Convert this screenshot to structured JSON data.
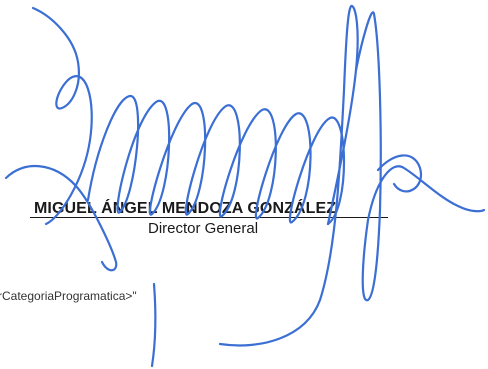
{
  "signature_block": {
    "name": "MIGUEL ÁNGEL MENDOZA GONZÁLEZ",
    "title": "Director General"
  },
  "code_fragment": "rCategoriaProgramatica>\"",
  "signature": {
    "ink_color": "#3b6fd4"
  }
}
